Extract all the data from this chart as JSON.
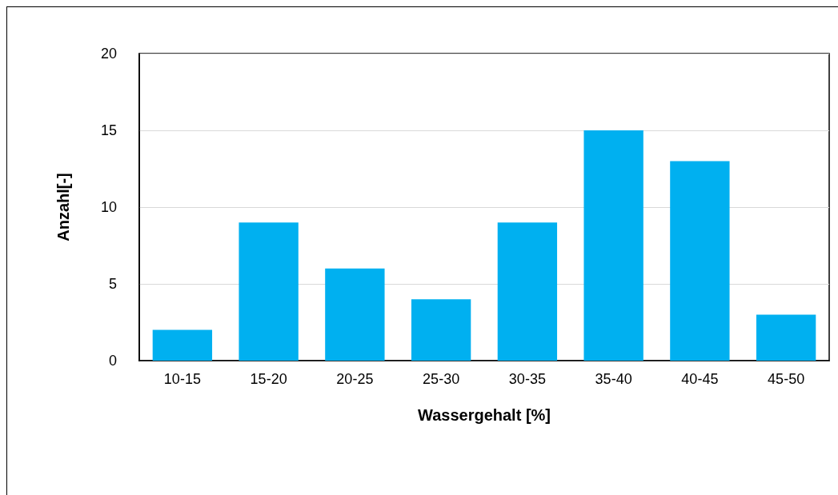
{
  "chart_data": {
    "type": "bar",
    "xlabel": "Wassergehalt [%]",
    "ylabel": "Anzahl[-]",
    "categories": [
      "10-15",
      "15-20",
      "20-25",
      "25-30",
      "30-35",
      "35-40",
      "40-45",
      "45-50"
    ],
    "values": [
      2,
      9,
      6,
      4,
      9,
      15,
      13,
      3
    ],
    "color": "#00b0f0",
    "ylim": [
      0,
      20
    ],
    "yticks": [
      0,
      5,
      10,
      15,
      20
    ],
    "grid": "y"
  }
}
